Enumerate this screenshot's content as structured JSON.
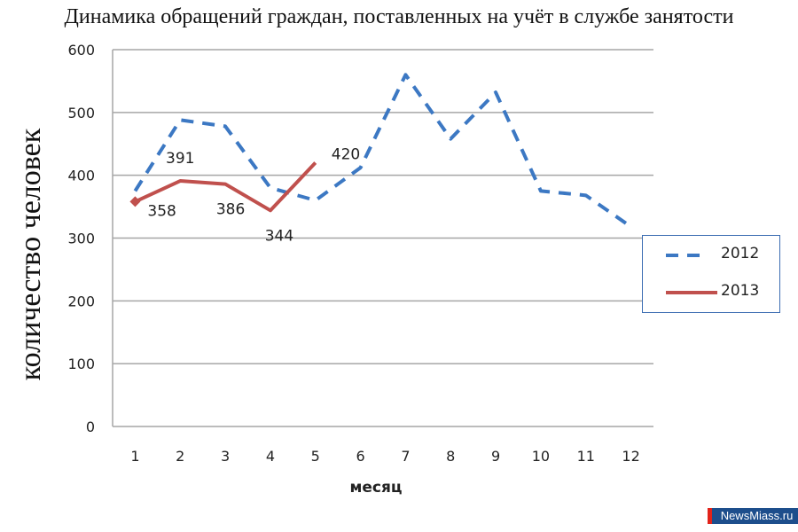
{
  "title": "Динамика  обращений  граждан, поставленных на учёт в службе занятости",
  "watermark": "NewsMiass.ru",
  "chart_data": {
    "type": "line",
    "title": "Динамика обращений граждан, поставленных на учёт в службе занятости",
    "xlabel": "месяц",
    "ylabel": "количество человек",
    "ylim": [
      0,
      600
    ],
    "yticks": [
      "0",
      "100",
      "200",
      "300",
      "400",
      "500",
      "600"
    ],
    "categories": [
      "1",
      "2",
      "3",
      "4",
      "5",
      "6",
      "7",
      "8",
      "9",
      "10",
      "11",
      "12"
    ],
    "grid": true,
    "legend_position": "right",
    "series": [
      {
        "name": "2012",
        "style": "dashed",
        "color": "#3c78c3",
        "values": [
          375,
          488,
          478,
          380,
          360,
          412,
          560,
          458,
          532,
          375,
          368,
          318
        ]
      },
      {
        "name": "2013",
        "style": "solid",
        "color": "#c0504d",
        "values": [
          358,
          391,
          386,
          344,
          420
        ],
        "data_labels": [
          "358",
          "391",
          "386",
          "344",
          "420"
        ]
      }
    ]
  },
  "legend": [
    {
      "label": "2012"
    },
    {
      "label": "2013"
    }
  ]
}
